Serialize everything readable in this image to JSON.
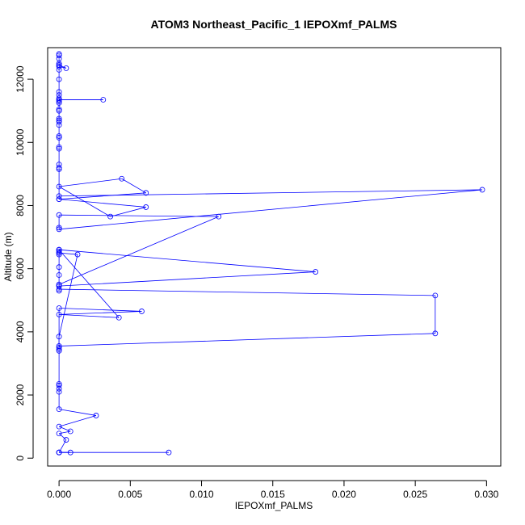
{
  "chart_data": {
    "type": "line",
    "title": "ATOM3 Northeast_Pacific_1 IEPOXmf_PALMS",
    "xlabel": "IEPOXmf_PALMS",
    "ylabel": "Altitude (m)",
    "xlim": [
      -0.0008,
      0.031
    ],
    "ylim": [
      -250,
      13000
    ],
    "xticks": [
      0.0,
      0.005,
      0.01,
      0.015,
      0.02,
      0.025,
      0.03
    ],
    "xtick_labels": [
      "0.000",
      "0.005",
      "0.010",
      "0.015",
      "0.020",
      "0.025",
      "0.030"
    ],
    "yticks": [
      0,
      2000,
      4000,
      6000,
      8000,
      10000,
      12000
    ],
    "ytick_labels": [
      "0",
      "2000",
      "4000",
      "6000",
      "8000",
      "10000",
      "12000"
    ],
    "grid": false,
    "colors": {
      "series": "#0000ff",
      "axis": "#000000"
    },
    "series": [
      {
        "marker": "open-circle",
        "x": [
          0.0077,
          0.0,
          0.0,
          0.0008,
          0.0,
          0.0005,
          0.0,
          0.0008,
          0.0,
          0.0026,
          0.0,
          0.0,
          0.0,
          0.0,
          0.0,
          0.0,
          0.0,
          0.0,
          0.0,
          0.0013,
          0.0,
          0.0,
          0.0,
          0.0042,
          0.0,
          0.0058,
          0.0,
          0.0,
          0.0264,
          0.0264,
          0.0,
          0.0,
          0.0,
          0.0,
          0.0,
          0.0,
          0.0,
          0.0,
          0.018,
          0.0,
          0.0,
          0.0112,
          0.0,
          0.0,
          0.0,
          0.0297,
          0.0,
          0.0,
          0.0061,
          0.0036,
          0.0,
          0.0044,
          0.0061,
          0.0,
          0.0,
          0.0,
          0.0,
          0.0,
          0.0,
          0.0,
          0.0,
          0.0,
          0.0,
          0.0,
          0.0,
          0.0,
          0.0,
          0.0,
          0.0,
          0.0,
          0.0031,
          0.0,
          0.0,
          0.0,
          0.0,
          0.0,
          0.0,
          0.0,
          0.0005,
          0.0,
          0.0,
          0.0,
          0.0,
          0.0,
          0.0
        ],
        "y": [
          180,
          180,
          180,
          180,
          180,
          580,
          780,
          850,
          1000,
          1350,
          1550,
          2100,
          2300,
          2350,
          2200,
          3400,
          3500,
          3450,
          3850,
          6450,
          6500,
          6550,
          6600,
          4450,
          4550,
          4650,
          4750,
          3550,
          3950,
          5150,
          5350,
          5450,
          5300,
          5800,
          6050,
          6450,
          6500,
          6600,
          5900,
          5450,
          5500,
          7650,
          7700,
          7300,
          7250,
          8500,
          8300,
          8200,
          7950,
          7650,
          8600,
          8850,
          8400,
          8200,
          9150,
          9200,
          9300,
          9800,
          9850,
          10150,
          10200,
          10550,
          10650,
          10700,
          10750,
          11000,
          11050,
          11250,
          11300,
          11350,
          11350,
          11350,
          11400,
          11500,
          11600,
          12000,
          12300,
          12400,
          12350,
          12450,
          12500,
          12450,
          12650,
          12750,
          12800
        ]
      }
    ]
  }
}
